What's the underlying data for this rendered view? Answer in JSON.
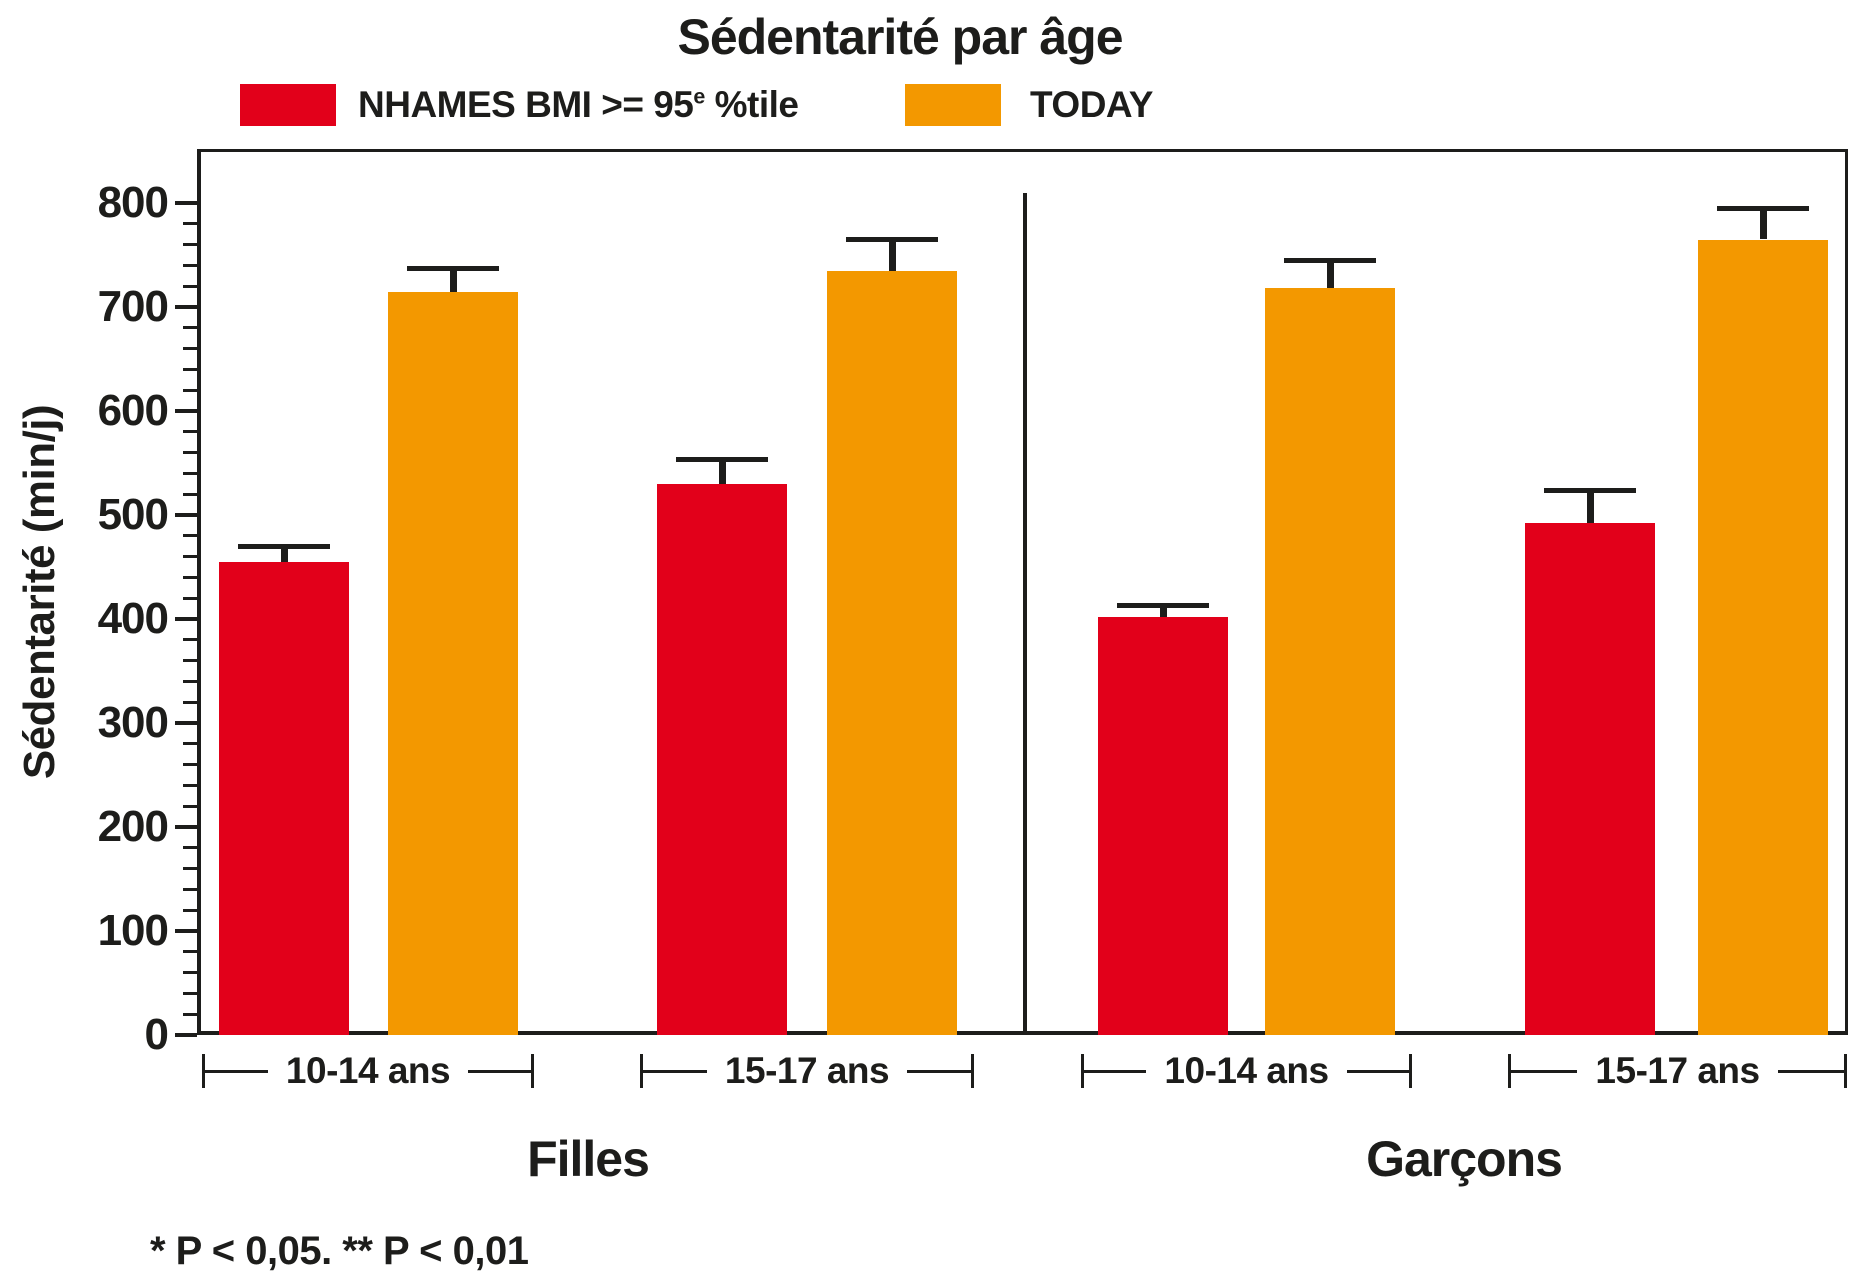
{
  "title": "Sédentarité par âge",
  "ylabel": "Sédentarité (min/j)",
  "footnote": "* P < 0,05. ** P < 0,01",
  "legend": {
    "item1_prefix": "NHAMES BMI >= 95",
    "item1_sup": "e",
    "item1_suffix": " %tile",
    "item2": "TODAY"
  },
  "colors": {
    "nhames_red": "#e2001a",
    "today_orange": "#f39800",
    "text_black": "#1d1d1b"
  },
  "chart_data": {
    "type": "bar",
    "title": "Sédentarité par âge",
    "xlabel": "",
    "ylabel": "Sédentarité (min/j)",
    "ylim": [
      0,
      852
    ],
    "yticks_major": [
      0,
      100,
      200,
      300,
      400,
      500,
      600,
      700,
      800
    ],
    "ytick_minor_step": 20,
    "grid": false,
    "legend_position": "top",
    "sections": [
      "Filles",
      "Garçons"
    ],
    "groups": [
      {
        "section": "Filles",
        "age": "10-14 ans"
      },
      {
        "section": "Filles",
        "age": "15-17 ans"
      },
      {
        "section": "Garçons",
        "age": "10-14 ans"
      },
      {
        "section": "Garçons",
        "age": "15-17 ans"
      }
    ],
    "categories": [
      "Filles 10-14 ans",
      "Filles 15-17 ans",
      "Garçons 10-14 ans",
      "Garçons 15-17 ans"
    ],
    "series": [
      {
        "name": "NHAMES BMI >= 95e %tile",
        "color": "#e2001a",
        "values": [
          455,
          530,
          402,
          492
        ],
        "errors_plus": [
          17,
          26,
          13,
          34
        ]
      },
      {
        "name": "TODAY",
        "color": "#f39800",
        "values": [
          715,
          735,
          718,
          765
        ],
        "errors_plus": [
          25,
          32,
          29,
          32
        ]
      }
    ],
    "footnote": "* P < 0,05. ** P < 0,01"
  }
}
